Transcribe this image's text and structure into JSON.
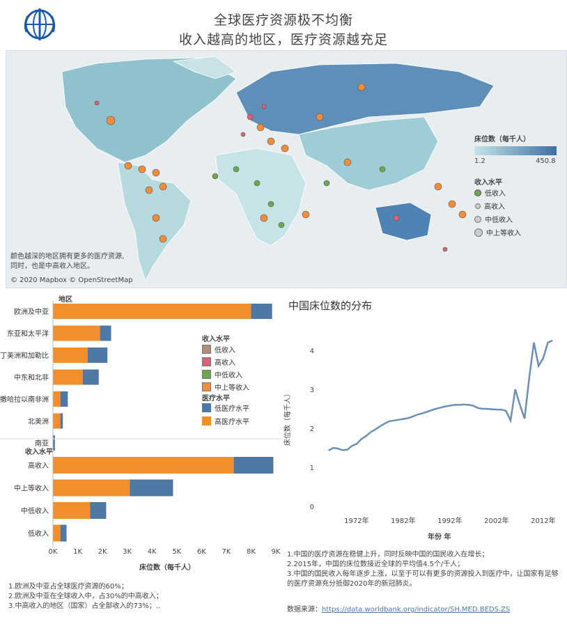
{
  "header": {
    "title_line1": "全球医疗资源极不均衡",
    "title_line2": "收入越高的地区，医疗资源越充足"
  },
  "map": {
    "legend_title": "床位数（每千人）",
    "legend_min": "1.2",
    "legend_max": "450.8",
    "income_legend_title": "收入水平",
    "income_levels": [
      "低收入",
      "高收入",
      "中低收入",
      "中上等收入"
    ],
    "note_line1": "颜色越深的地区拥有更多的医疗资源,",
    "note_line2": "同时，也是中高收入地区。",
    "attribution": "© 2020 Mapbox © OpenStreetMap",
    "colors": {
      "low": "#b18d77",
      "high": "#d9617a",
      "lowmid": "#6aa84f",
      "upmid": "#f08c3a"
    }
  },
  "bar_section": {
    "region_header": "地区",
    "income_header": "收入水平",
    "x_axis_title": "床位数（每千人）",
    "legend_income_title": "收入水平",
    "legend_income_items": [
      "低收入",
      "高收入",
      "中低收入",
      "中上等收入"
    ],
    "legend_medical_title": "医疗水平",
    "legend_medical_items": [
      "低医疗水平",
      "高医疗水平"
    ],
    "colors": {
      "high_med": "#f28e2b",
      "low_med": "#4e79a7"
    }
  },
  "notes_left": [
    "1.欧洲及中亚占全球医疗资源的60%；",
    "2.欧洲及中亚在全球收入中，占30%的中高收入；",
    "3.中高收入的地区（国家）占全部收入的73%；.."
  ],
  "line_section": {
    "title": "中国床位数的分布",
    "y_axis_title": "床位数（每千人）",
    "x_axis_title": "年份 年"
  },
  "notes_right": [
    "1.中国的医疗资源在稳健上升，同时反映中国的国民收入在增长；",
    "2.2015年，中国的床位数接近全球的平均值4.5个/千人；",
    "3.中国的国民收入每年逐步上涨，以至于可以有更多的资源投入到医疗中，让国家有足够的医疗资源充分抵御2020年的新冠肺炎。"
  ],
  "source": {
    "label": "数据来源：",
    "url": "https://data.worldbank.org/indicator/SH.MED.BEDS.ZS"
  },
  "chart_data": [
    {
      "type": "bar",
      "orientation": "horizontal",
      "stacked": true,
      "title": "地区",
      "categories": [
        "欧洲及中亚",
        "东亚和太平洋",
        "拉丁美洲和加勒比",
        "中东和北非",
        "撒哈拉以南非洲",
        "北美洲",
        "南亚"
      ],
      "series": [
        {
          "name": "高医疗水平",
          "color": "#f28e2b",
          "values": [
            8000,
            1900,
            1400,
            1200,
            300,
            300,
            0
          ]
        },
        {
          "name": "低医疗水平",
          "color": "#4e79a7",
          "values": [
            850,
            450,
            800,
            650,
            300,
            100,
            80
          ]
        }
      ],
      "xlabel": "床位数（每千人）",
      "xlim": [
        0,
        9000
      ],
      "xticks": [
        "0K",
        "1K",
        "2K",
        "3K",
        "4K",
        "5K",
        "6K",
        "7K",
        "8K",
        "9K"
      ]
    },
    {
      "type": "bar",
      "orientation": "horizontal",
      "stacked": true,
      "title": "收入水平",
      "categories": [
        "高收入",
        "中上等收入",
        "中低收入",
        "低收入"
      ],
      "series": [
        {
          "name": "高医疗水平",
          "color": "#f28e2b",
          "values": [
            7300,
            3100,
            1500,
            300
          ]
        },
        {
          "name": "低医疗水平",
          "color": "#4e79a7",
          "values": [
            1600,
            1750,
            650,
            250
          ]
        }
      ],
      "xlabel": "床位数（每千人）",
      "xlim": [
        0,
        9000
      ],
      "xticks": [
        "0K",
        "1K",
        "2K",
        "3K",
        "4K",
        "5K",
        "6K",
        "7K",
        "8K",
        "9K"
      ]
    },
    {
      "type": "line",
      "title": "中国床位数的分布",
      "xlabel": "年份 年",
      "ylabel": "床位数（每千人）",
      "xlim": [
        1965,
        2015
      ],
      "ylim": [
        0,
        4.5
      ],
      "xticks": [
        "1972年",
        "1982年",
        "1992年",
        "2002年",
        "2012年"
      ],
      "yticks": [
        0,
        1,
        2,
        3,
        4
      ],
      "series": [
        {
          "color": "#6b8fb5",
          "x": [
            1966,
            1967,
            1968,
            1969,
            1970,
            1971,
            1972,
            1973,
            1974,
            1975,
            1976,
            1977,
            1978,
            1979,
            1980,
            1981,
            1982,
            1983,
            1984,
            1985,
            1986,
            1987,
            1988,
            1989,
            1990,
            1991,
            1992,
            1993,
            1994,
            1995,
            1996,
            1997,
            1998,
            1999,
            2000,
            2001,
            2002,
            2003,
            2004,
            2005,
            2006,
            2007,
            2008,
            2009,
            2010,
            2011,
            2012,
            2013,
            2014
          ],
          "y": [
            1.43,
            1.5,
            1.48,
            1.44,
            1.45,
            1.55,
            1.6,
            1.72,
            1.8,
            1.9,
            1.97,
            2.05,
            2.12,
            2.18,
            2.2,
            2.22,
            2.24,
            2.26,
            2.3,
            2.35,
            2.38,
            2.42,
            2.46,
            2.5,
            2.53,
            2.56,
            2.58,
            2.6,
            2.6,
            2.61,
            2.6,
            2.58,
            2.52,
            2.5,
            2.5,
            2.49,
            2.48,
            2.48,
            2.45,
            2.2,
            3.0,
            2.6,
            2.25,
            3.3,
            4.2,
            3.6,
            3.8,
            4.2,
            4.25
          ]
        }
      ]
    }
  ]
}
